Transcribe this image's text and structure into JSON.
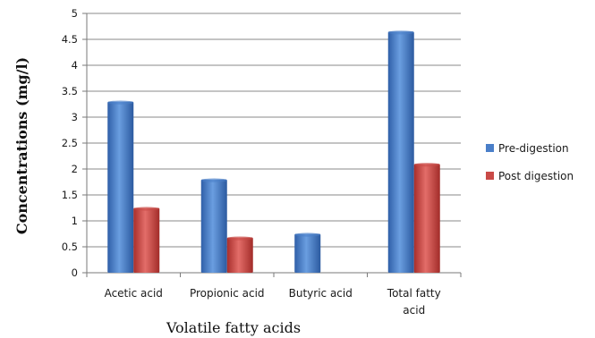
{
  "chart_data": {
    "type": "bar",
    "categories": [
      "Acetic acid",
      "Propionic acid",
      "Butyric acid",
      "Total fatty acid"
    ],
    "category_lines": [
      [
        "Acetic acid"
      ],
      [
        "Propionic acid"
      ],
      [
        "Butyric acid"
      ],
      [
        "Total fatty",
        "acid"
      ]
    ],
    "series": [
      {
        "name": "Pre-digestion",
        "color": "#4a7fc9",
        "values": [
          3.3,
          1.8,
          0.75,
          4.65
        ]
      },
      {
        "name": "Post digestion",
        "color": "#c94a47",
        "values": [
          1.25,
          0.68,
          0,
          2.1
        ]
      }
    ],
    "title": "",
    "xlabel": "Volatile fatty acids",
    "ylabel": "Concentrations (mg/l)",
    "ylim": [
      0,
      5
    ],
    "yticks": [
      0,
      0.5,
      1,
      1.5,
      2,
      2.5,
      3,
      3.5,
      4,
      4.5,
      5
    ],
    "ytick_labels": [
      "0",
      "0.5",
      "1",
      "1.5",
      "2",
      "2.5",
      "3",
      "3.5",
      "4",
      "4.5",
      "5"
    ],
    "grid": true,
    "legend_position": "right"
  }
}
